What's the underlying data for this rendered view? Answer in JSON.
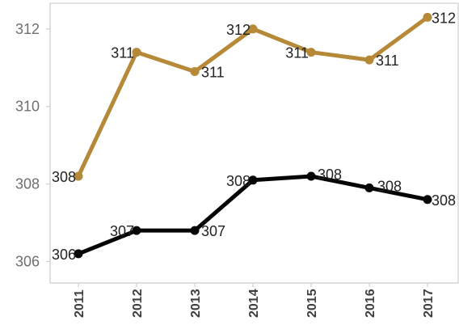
{
  "chart_data": {
    "type": "line",
    "title": "",
    "xlabel": "",
    "ylabel": "",
    "categories": [
      "2011",
      "2012",
      "2013",
      "2014",
      "2015",
      "2016",
      "2017"
    ],
    "ylim": [
      305.8,
      312.6
    ],
    "y_ticks": [
      306,
      308,
      310,
      312
    ],
    "grid": false,
    "legend": "none",
    "series": [
      {
        "color": "#b58937",
        "values": [
          308.2,
          311.4,
          310.9,
          312.0,
          311.4,
          311.2,
          312.3
        ],
        "labels": [
          "308",
          "311",
          "311",
          "312",
          "311",
          "311",
          "312"
        ]
      },
      {
        "color": "#050505",
        "values": [
          306.2,
          306.8,
          306.8,
          308.1,
          308.2,
          307.9,
          307.6
        ],
        "labels": [
          "306",
          "307",
          "307",
          "308",
          "308",
          "308",
          "308"
        ]
      }
    ]
  }
}
